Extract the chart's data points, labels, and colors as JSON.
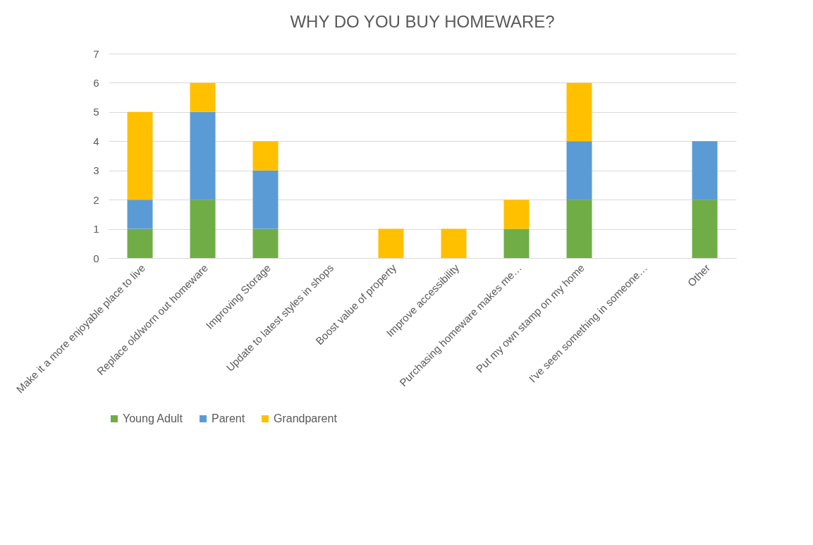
{
  "chart_data": {
    "type": "bar",
    "title": "WHY DO YOU BUY HOMEWARE?",
    "stacked": true,
    "categories": [
      "Make it a more enjoyable place to live",
      "Replace old/worn out homeware",
      "Improving Storage",
      "Update to latest styles in shops",
      "Boost value of property",
      "Improve accessibility",
      "Purchasing homeware makes me…",
      "Put my own stamp on my home",
      "I've seen something in someone…",
      "Other"
    ],
    "series": [
      {
        "name": "Young Adult",
        "color": "#70ad47",
        "values": [
          1,
          2,
          1,
          0,
          0,
          0,
          1,
          2,
          0,
          2
        ]
      },
      {
        "name": "Parent",
        "color": "#5b9bd5",
        "values": [
          1,
          3,
          2,
          0,
          0,
          0,
          0,
          2,
          0,
          2
        ]
      },
      {
        "name": "Grandparent",
        "color": "#ffc000",
        "values": [
          3,
          1,
          1,
          0,
          1,
          1,
          1,
          2,
          0,
          0
        ]
      }
    ],
    "ylim": [
      0,
      7
    ],
    "yticks": [
      0,
      1,
      2,
      3,
      4,
      5,
      6,
      7
    ],
    "grid": "y",
    "legend": "bottom"
  }
}
